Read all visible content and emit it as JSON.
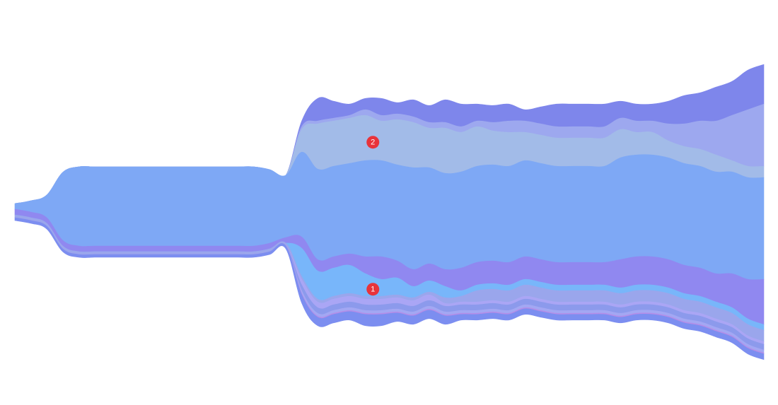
{
  "chart_data": {
    "type": "area",
    "subtype": "streamgraph",
    "offset": "silhouette",
    "interpolation": "smooth",
    "title": "",
    "xlabel": "",
    "ylabel": "",
    "axes_visible": false,
    "grid": false,
    "legend": "none",
    "x": [
      0,
      1,
      2,
      3,
      4,
      5,
      6,
      7,
      8,
      9,
      10,
      11,
      12,
      13,
      14,
      15,
      16,
      17,
      18,
      19,
      20,
      21,
      22,
      23,
      24,
      25,
      26,
      27,
      28,
      29,
      30,
      31,
      32,
      33,
      34,
      35,
      36,
      37,
      38,
      39,
      40,
      41,
      42,
      43,
      44,
      45,
      46,
      47
    ],
    "series": [
      {
        "color": "#7e86eb",
        "values": [
          0,
          0,
          0,
          0,
          0,
          0,
          0,
          0,
          0,
          0,
          0,
          0,
          0,
          0,
          0,
          0,
          0,
          0,
          1,
          4,
          3,
          2,
          2,
          3,
          2,
          3,
          3,
          4,
          4,
          3,
          3,
          3,
          2,
          3,
          4,
          4,
          4,
          4,
          3,
          3,
          3,
          4,
          5,
          5,
          6,
          6,
          7,
          7
        ]
      },
      {
        "color": "#9da8ef",
        "values": [
          0,
          0,
          0,
          0,
          0,
          0,
          0,
          0,
          0,
          0,
          0,
          0,
          0,
          0,
          0,
          0,
          0,
          0,
          0.5,
          0.5,
          0.5,
          0.5,
          1,
          1,
          1,
          1,
          1,
          1,
          1,
          1,
          1.5,
          2,
          2,
          2,
          2,
          2,
          2,
          2,
          2,
          2,
          2,
          3,
          4,
          5,
          6,
          8,
          10,
          11
        ]
      },
      {
        "color": "#a2bbe8",
        "values": [
          0,
          0,
          0,
          0,
          0,
          0,
          0,
          0,
          0,
          0,
          0,
          0,
          0,
          0,
          0,
          0,
          0,
          0,
          4,
          8,
          8,
          8,
          8,
          7,
          8,
          8,
          7,
          8,
          7,
          7,
          6,
          6,
          5,
          5,
          5,
          5,
          5,
          5,
          5,
          4,
          4,
          3,
          3,
          3,
          3,
          2,
          2,
          2
        ]
      },
      {
        "color": "#7ea8f5",
        "values": [
          1,
          2,
          4,
          12,
          14,
          14,
          14,
          14,
          14,
          14,
          14,
          14,
          14,
          14,
          14,
          14,
          13,
          11,
          15,
          16,
          16,
          16,
          17,
          17,
          17,
          18,
          17,
          17,
          17,
          17,
          17,
          17,
          17,
          17,
          17,
          17,
          17,
          17,
          18,
          18,
          18,
          18,
          18,
          18,
          18,
          18,
          18,
          18
        ]
      },
      {
        "color": "#9088f0",
        "values": [
          1,
          1,
          1,
          1,
          1,
          1,
          1,
          1,
          1,
          1,
          1,
          1,
          1,
          1,
          1,
          1,
          1,
          1,
          2,
          2,
          2,
          2,
          3,
          4,
          3,
          3,
          3,
          3,
          4,
          4,
          4,
          4,
          4,
          4,
          4,
          4,
          4,
          4,
          5,
          5,
          5,
          5,
          5,
          5,
          5,
          6,
          7,
          8
        ]
      },
      {
        "color": "#78b6fa",
        "values": [
          0,
          0,
          0,
          0,
          0,
          0,
          0,
          0,
          0,
          0,
          0,
          0,
          0,
          0,
          0,
          0,
          0,
          0,
          5,
          5,
          5,
          5,
          4,
          3,
          3,
          2,
          2,
          2,
          1,
          1,
          1,
          1,
          1,
          1,
          1,
          1,
          1,
          1,
          1,
          1,
          1,
          1,
          1,
          1,
          1,
          1,
          1,
          1
        ]
      },
      {
        "color": "#9aa6ec",
        "values": [
          0.5,
          0.5,
          0.5,
          0.5,
          0.5,
          0.5,
          0.5,
          0.5,
          0.5,
          0.5,
          0.5,
          0.5,
          0.5,
          0.5,
          0.5,
          0.5,
          0.5,
          0.5,
          0.5,
          0.5,
          0.5,
          0.5,
          0.5,
          0.5,
          0.5,
          0.5,
          0.5,
          1,
          1,
          2,
          2,
          2,
          2,
          2,
          2,
          2,
          2,
          2,
          2,
          2,
          2,
          2,
          2,
          2,
          2,
          2,
          2,
          2
        ]
      },
      {
        "color": "#aaa6f5",
        "values": [
          0,
          0,
          0,
          0,
          0,
          0,
          0,
          0,
          0,
          0,
          0,
          0,
          0,
          0,
          0,
          0,
          0,
          0,
          1,
          1,
          1,
          1,
          1,
          1,
          1,
          1,
          1,
          0.5,
          0.5,
          0.5,
          0.5,
          0.5,
          0.5,
          0.5,
          0.5,
          0.5,
          0.5,
          0.5,
          0.5,
          0.5,
          0.5,
          0.5,
          0.5,
          0.5,
          0.5,
          0.5,
          0.5,
          0.5
        ]
      },
      {
        "color": "#8c9aec",
        "values": [
          0,
          0,
          0,
          0,
          0,
          0,
          0,
          0,
          0,
          0,
          0,
          0,
          0,
          0,
          0,
          0,
          0,
          0,
          1,
          1,
          1,
          1,
          1,
          1,
          1,
          1,
          1,
          1,
          1,
          1,
          1,
          1,
          1,
          1,
          1,
          1,
          1,
          1,
          1,
          1,
          1,
          1,
          1,
          1,
          1,
          1,
          1,
          1
        ]
      },
      {
        "color": "#a3a7f3",
        "values": [
          0,
          0,
          0,
          0,
          0,
          0,
          0,
          0,
          0,
          0,
          0,
          0,
          0,
          0,
          0,
          0,
          0,
          0,
          0.5,
          0.5,
          0.5,
          0.5,
          0.5,
          0.5,
          0.5,
          0.5,
          0.5,
          0.5,
          0.5,
          0.5,
          0.5,
          0.5,
          0.5,
          0.5,
          0.5,
          0.5,
          0.5,
          0.5,
          0.5,
          0.5,
          0.5,
          0.5,
          0.5,
          0.5,
          0.5,
          0.5,
          0.5,
          0.5
        ]
      },
      {
        "color": "#b48ee8",
        "values": [
          0,
          0,
          0,
          0,
          0,
          0,
          0,
          0,
          0,
          0,
          0,
          0,
          0,
          0,
          0,
          0,
          0,
          0,
          0.2,
          0.2,
          0.2,
          0.2,
          0.2,
          0.2,
          0.2,
          0.2,
          0.2,
          0.2,
          0.2,
          0.2,
          0.2,
          0.2,
          0.2,
          0.2,
          0.2,
          0.2,
          0.2,
          0.2,
          0.2,
          0.2,
          0.2,
          0.2,
          0.2,
          0.2,
          0.2,
          0.2,
          0.2,
          0.2
        ]
      },
      {
        "color": "#7c8ef0",
        "values": [
          0.5,
          0.5,
          0.5,
          0.5,
          0.5,
          0.5,
          0.5,
          0.5,
          0.5,
          0.5,
          0.5,
          0.5,
          0.5,
          0.5,
          0.5,
          0.5,
          0.5,
          0.5,
          1.5,
          1.5,
          1.5,
          1.5,
          2,
          2,
          1.5,
          1.5,
          1.5,
          1.5,
          1,
          1,
          1,
          1,
          1,
          1,
          1,
          1,
          1,
          1,
          1,
          1,
          1,
          1,
          1,
          1,
          1,
          1,
          1,
          1
        ]
      }
    ],
    "annotations": [
      {
        "label": "2",
        "color": "#e8333b",
        "x": 23,
        "series_index": 2
      },
      {
        "label": "1",
        "color": "#e8333b",
        "x": 23,
        "series_index": 5
      }
    ]
  }
}
